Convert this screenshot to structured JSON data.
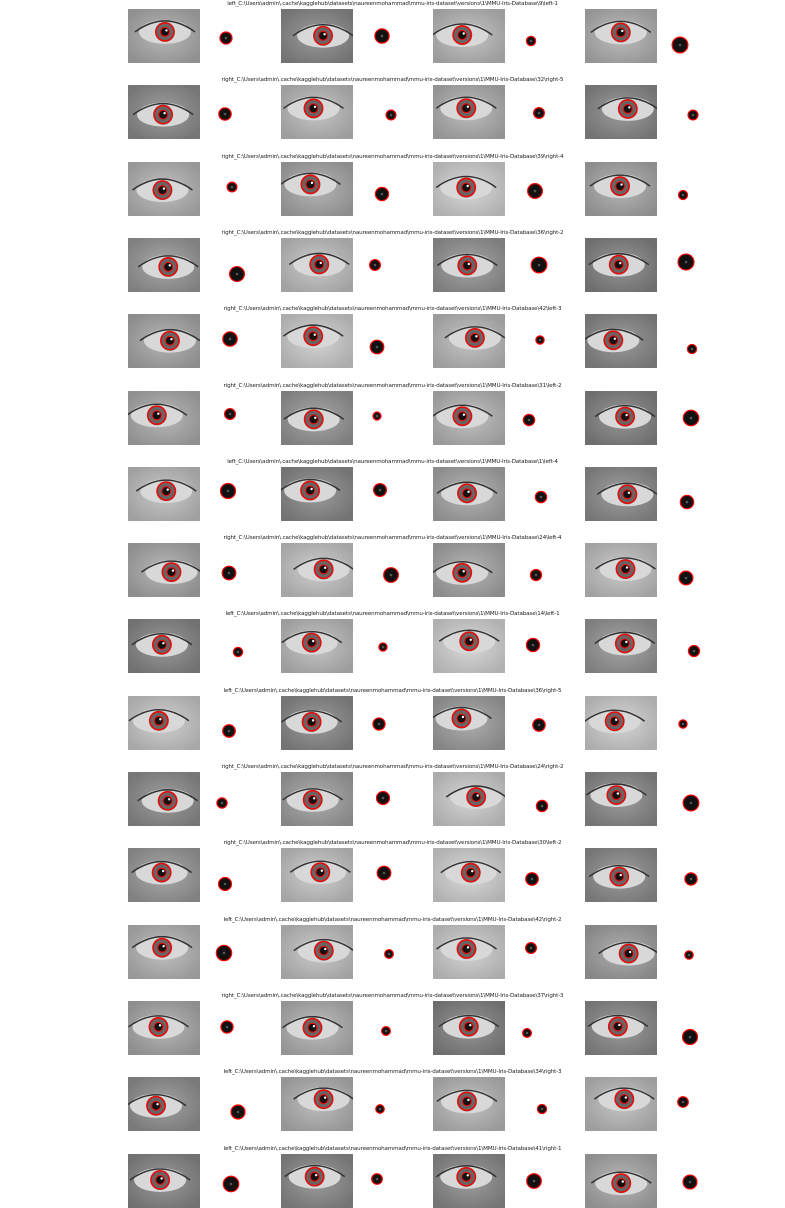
{
  "figure": {
    "rows": [
      {
        "caption": "left_C:\\Users\\admin\\.cache\\kagglehub\\datasets\\naureenmohammad\\mmu-iris-dataset\\versions\\1\\MMU-Iris-Database\\9\\left-1"
      },
      {
        "caption": "right_C:\\Users\\admin\\.cache\\kagglehub\\datasets\\naureenmohammad\\mmu-iris-dataset\\versions\\1\\MMU-Iris-Database\\32\\right-5"
      },
      {
        "caption": "right_C:\\Users\\admin\\.cache\\kagglehub\\datasets\\naureenmohammad\\mmu-iris-dataset\\versions\\1\\MMU-Iris-Database\\39\\right-4"
      },
      {
        "caption": "right_C:\\Users\\admin\\.cache\\kagglehub\\datasets\\naureenmohammad\\mmu-iris-dataset\\versions\\1\\MMU-Iris-Database\\36\\right-2"
      },
      {
        "caption": "right_C:\\Users\\admin\\.cache\\kagglehub\\datasets\\naureenmohammad\\mmu-iris-dataset\\versions\\1\\MMU-Iris-Database\\42\\left-3"
      },
      {
        "caption": "right_C:\\Users\\admin\\.cache\\kagglehub\\datasets\\naureenmohammad\\mmu-iris-dataset\\versions\\1\\MMU-Iris-Database\\31\\left-2"
      },
      {
        "caption": "left_C:\\Users\\admin\\.cache\\kagglehub\\datasets\\naureenmohammad\\mmu-iris-dataset\\versions\\1\\MMU-Iris-Database\\1\\left-4"
      },
      {
        "caption": "right_C:\\Users\\admin\\.cache\\kagglehub\\datasets\\naureenmohammad\\mmu-iris-dataset\\versions\\1\\MMU-Iris-Database\\24\\left-4"
      },
      {
        "caption": "left_C:\\Users\\admin\\.cache\\kagglehub\\datasets\\naureenmohammad\\mmu-iris-dataset\\versions\\1\\MMU-Iris-Database\\14\\left-1"
      },
      {
        "caption": "left_C:\\Users\\admin\\.cache\\kagglehub\\datasets\\naureenmohammad\\mmu-iris-dataset\\versions\\1\\MMU-Iris-Database\\36\\right-5"
      },
      {
        "caption": "right_C:\\Users\\admin\\.cache\\kagglehub\\datasets\\naureenmohammad\\mmu-iris-dataset\\versions\\1\\MMU-Iris-Database\\24\\right-2"
      },
      {
        "caption": "right_C:\\Users\\admin\\.cache\\kagglehub\\datasets\\naureenmohammad\\mmu-iris-dataset\\versions\\1\\MMU-Iris-Database\\30\\left-2"
      },
      {
        "caption": "left_C:\\Users\\admin\\.cache\\kagglehub\\datasets\\naureenmohammad\\mmu-iris-dataset\\versions\\1\\MMU-Iris-Database\\42\\right-2"
      },
      {
        "caption": "right_C:\\Users\\admin\\.cache\\kagglehub\\datasets\\naureenmohammad\\mmu-iris-dataset\\versions\\1\\MMU-Iris-Database\\37\\right-3"
      },
      {
        "caption": "left_C:\\Users\\admin\\.cache\\kagglehub\\datasets\\naureenmohammad\\mmu-iris-dataset\\versions\\1\\MMU-Iris-Database\\34\\right-3"
      },
      {
        "caption": "left_C:\\Users\\admin\\.cache\\kagglehub\\datasets\\naureenmohammad\\mmu-iris-dataset\\versions\\1\\MMU-Iris-Database\\41\\right-1"
      }
    ],
    "colors": {
      "boundary_circle": "#ff0000",
      "image_background": "#9a9a9a",
      "page_background": "#ffffff"
    }
  }
}
